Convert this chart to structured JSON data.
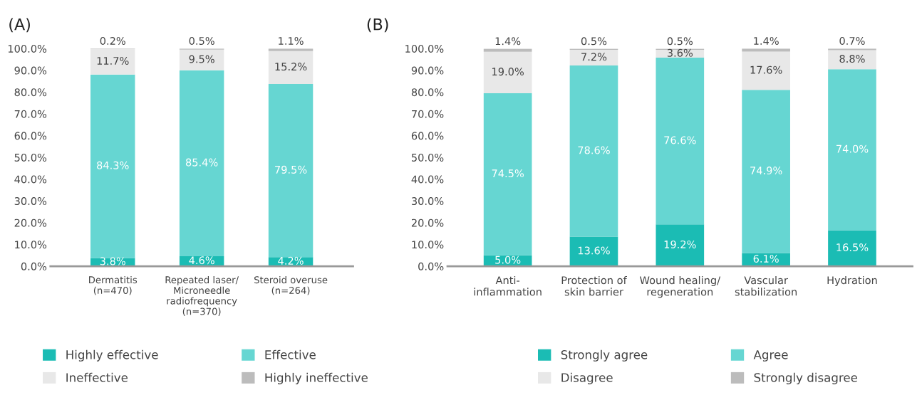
{
  "chart_data": [
    {
      "type": "bar",
      "title": "(A)",
      "stacked": true,
      "legend": "bottom",
      "grid": false,
      "categories": [
        "Dermatitis\n(n=470)",
        "Repeated laser/\nMicroneedle\nradiofrequency\n(n=370)",
        "Steroid overuse\n(n=264)"
      ],
      "ylim": [
        0,
        100
      ],
      "yticks": [
        {
          "value": 0,
          "label": "0.0%"
        },
        {
          "value": 10,
          "label": "10.0%"
        },
        {
          "value": 20,
          "label": "20.0%"
        },
        {
          "value": 30,
          "label": "30.0%"
        },
        {
          "value": 40,
          "label": "40.0%"
        },
        {
          "value": 50,
          "label": "50.0%"
        },
        {
          "value": 60,
          "label": "60.0%"
        },
        {
          "value": 70,
          "label": "70.0%"
        },
        {
          "value": 80,
          "label": "80.0%"
        },
        {
          "value": 90,
          "label": "90.0%"
        },
        {
          "value": 100,
          "label": "100.0%"
        }
      ],
      "series": [
        {
          "name": "Highly effective",
          "color": "#1bbcb4",
          "values": [
            3.8,
            4.6,
            4.2
          ],
          "value_labels": [
            "3.8%",
            "4.6%",
            "4.2%"
          ]
        },
        {
          "name": "Effective",
          "color": "#66d6d2",
          "values": [
            84.3,
            85.4,
            79.5
          ],
          "value_labels": [
            "84.3%",
            "85.4%",
            "79.5%"
          ]
        },
        {
          "name": "Ineffective",
          "color": "#e8e8e8",
          "values": [
            11.7,
            9.5,
            15.2
          ],
          "value_labels": [
            "11.7%",
            "9.5%",
            "15.2%"
          ]
        },
        {
          "name": "Highly ineffective",
          "color": "#bcbcbc",
          "values": [
            0.2,
            0.5,
            1.1
          ],
          "value_labels": [
            "0.2%",
            "0.5%",
            "1.1%"
          ]
        }
      ]
    },
    {
      "type": "bar",
      "title": "(B)",
      "stacked": true,
      "legend": "bottom",
      "grid": false,
      "categories": [
        "Anti-\ninflammation",
        "Protection of\nskin barrier",
        "Wound healing/\nregeneration",
        "Vascular\nstabilization",
        "Hydration"
      ],
      "ylim": [
        0,
        100
      ],
      "yticks": [
        {
          "value": 0,
          "label": "0.0%"
        },
        {
          "value": 10,
          "label": "10.0%"
        },
        {
          "value": 20,
          "label": "20.0%"
        },
        {
          "value": 30,
          "label": "30.0%"
        },
        {
          "value": 40,
          "label": "40.0%"
        },
        {
          "value": 50,
          "label": "50.0%"
        },
        {
          "value": 60,
          "label": "60.0%"
        },
        {
          "value": 70,
          "label": "70.0%"
        },
        {
          "value": 80,
          "label": "80.0%"
        },
        {
          "value": 90,
          "label": "90.0%"
        },
        {
          "value": 100,
          "label": "100.0%"
        }
      ],
      "series": [
        {
          "name": "Strongly agree",
          "color": "#1bbcb4",
          "values": [
            5.0,
            13.6,
            19.2,
            6.1,
            16.5
          ],
          "value_labels": [
            "5.0%",
            "13.6%",
            "19.2%",
            "6.1%",
            "16.5%"
          ]
        },
        {
          "name": "Agree",
          "color": "#66d6d2",
          "values": [
            74.5,
            78.6,
            76.6,
            74.9,
            74.0
          ],
          "value_labels": [
            "74.5%",
            "78.6%",
            "76.6%",
            "74.9%",
            "74.0%"
          ]
        },
        {
          "name": "Disagree",
          "color": "#e8e8e8",
          "values": [
            19.0,
            7.2,
            3.6,
            17.6,
            8.8
          ],
          "value_labels": [
            "19.0%",
            "7.2%",
            "3.6%",
            "17.6%",
            "8.8%"
          ]
        },
        {
          "name": "Strongly disagree",
          "color": "#bcbcbc",
          "values": [
            1.4,
            0.5,
            0.5,
            1.4,
            0.7
          ],
          "value_labels": [
            "1.4%",
            "0.5%",
            "0.5%",
            "1.4%",
            "0.7%"
          ]
        }
      ]
    }
  ]
}
